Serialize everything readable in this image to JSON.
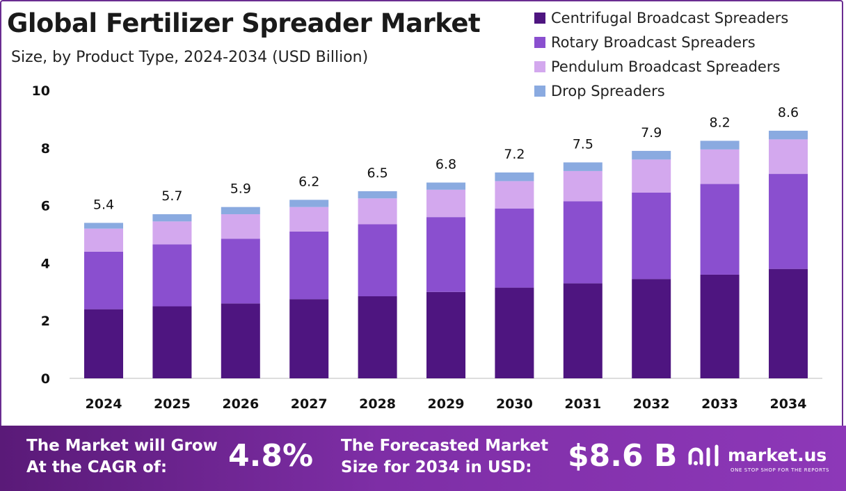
{
  "header": {
    "title": "Global Fertilizer Spreader Market",
    "subtitle": "Size, by Product Type, 2024-2034 (USD Billion)"
  },
  "legend": {
    "items": [
      {
        "label": "Centrifugal Broadcast Spreaders",
        "color": "#4e1580"
      },
      {
        "label": "Rotary Broadcast Spreaders",
        "color": "#8a4fcf"
      },
      {
        "label": "Pendulum Broadcast Spreaders",
        "color": "#d3a8ee"
      },
      {
        "label": "Drop Spreaders",
        "color": "#8aaae0"
      }
    ]
  },
  "chart_data": {
    "type": "bar",
    "stacked": true,
    "categories": [
      "2024",
      "2025",
      "2026",
      "2027",
      "2028",
      "2029",
      "2030",
      "2031",
      "2032",
      "2033",
      "2034"
    ],
    "series": [
      {
        "name": "Centrifugal Broadcast Spreaders",
        "color": "#4e1580",
        "values": [
          2.4,
          2.5,
          2.6,
          2.75,
          2.85,
          3.0,
          3.15,
          3.3,
          3.45,
          3.6,
          3.8
        ]
      },
      {
        "name": "Rotary Broadcast Spreaders",
        "color": "#8a4fcf",
        "values": [
          2.0,
          2.15,
          2.25,
          2.35,
          2.5,
          2.6,
          2.75,
          2.85,
          3.0,
          3.15,
          3.3
        ]
      },
      {
        "name": "Pendulum Broadcast Spreaders",
        "color": "#d3a8ee",
        "values": [
          0.8,
          0.8,
          0.85,
          0.85,
          0.9,
          0.95,
          0.95,
          1.05,
          1.15,
          1.2,
          1.2
        ]
      },
      {
        "name": "Drop Spreaders",
        "color": "#8aaae0",
        "values": [
          0.2,
          0.25,
          0.25,
          0.25,
          0.25,
          0.25,
          0.3,
          0.3,
          0.3,
          0.3,
          0.3
        ]
      }
    ],
    "totals": [
      "5.4",
      "5.7",
      "5.9",
      "6.2",
      "6.5",
      "6.8",
      "7.2",
      "7.5",
      "7.9",
      "8.2",
      "8.6"
    ],
    "yticks": [
      "0",
      "2",
      "4",
      "6",
      "8",
      "10"
    ],
    "ylim": [
      0,
      10
    ],
    "grid": false,
    "legend_position": "top-right"
  },
  "footer": {
    "cagr_text_1": "The Market will Grow",
    "cagr_text_2": "At the CAGR of:",
    "cagr_value": "4.8%",
    "forecast_text_1": "The Forecasted Market",
    "forecast_text_2": "Size for 2034 in USD:",
    "forecast_value": "$8.6 B",
    "brand_name": "market.us",
    "brand_tagline": "ONE STOP SHOP FOR THE REPORTS"
  }
}
